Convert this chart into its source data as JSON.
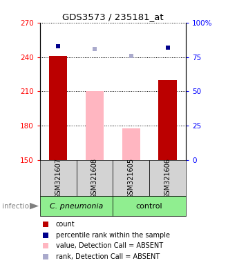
{
  "title": "GDS3573 / 235181_at",
  "samples": [
    "GSM321607",
    "GSM321608",
    "GSM321605",
    "GSM321606"
  ],
  "bar_bottom": 150,
  "ylim_left": [
    150,
    270
  ],
  "ylim_right": [
    0,
    100
  ],
  "yticks_left": [
    150,
    180,
    210,
    240,
    270
  ],
  "yticks_right": [
    0,
    25,
    50,
    75,
    100
  ],
  "red_values": [
    241,
    null,
    null,
    220
  ],
  "pink_values": [
    null,
    210,
    178,
    null
  ],
  "blue_squares_pct": [
    83,
    81,
    76,
    82
  ],
  "absent_mask": [
    false,
    true,
    true,
    false
  ],
  "bar_color_present": "#BB0000",
  "bar_color_absent": "#FFB6C1",
  "dot_color_present": "#00008B",
  "dot_color_absent": "#AAAACC",
  "sample_box_color": "#D3D3D3",
  "cpneumonia_color": "#90EE90",
  "control_color": "#90EE90",
  "infection_label": "infection",
  "legend_items": [
    {
      "label": "count",
      "color": "#BB0000"
    },
    {
      "label": "percentile rank within the sample",
      "color": "#00008B"
    },
    {
      "label": "value, Detection Call = ABSENT",
      "color": "#FFB6C1"
    },
    {
      "label": "rank, Detection Call = ABSENT",
      "color": "#AAAACC"
    }
  ]
}
